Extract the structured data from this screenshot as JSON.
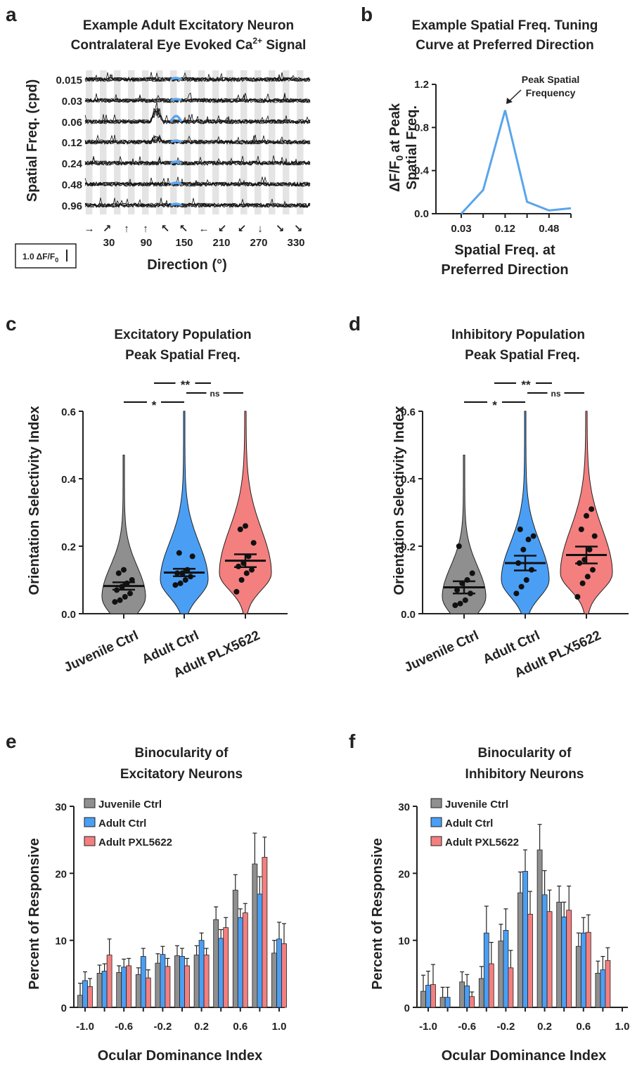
{
  "panels": {
    "a": {
      "label": "a",
      "title_lines": [
        "Example Adult Excitatory Neuron",
        "Contralateral Eye Evoked Ca"
      ],
      "title_sup": "2+",
      "title_tail": " Signal",
      "ylabel": "Spatial Freq. (cpd)",
      "xlabel": "Direction (°)",
      "scalebar": "1.0 ΔF/F",
      "scalebar_sub": "0"
    },
    "b": {
      "label": "b",
      "title_lines": [
        "Example Spatial Freq. Tuning",
        "Curve at Preferred Direction"
      ],
      "ylabel_lines": [
        "ΔF/F",
        "at Peak",
        "Spatial Freq."
      ],
      "ylabel_sub": "0",
      "xlabel_lines": [
        "Spatial Freq. at",
        "Preferred Direction"
      ],
      "annotation_lines": [
        "Peak Spatial",
        "Frequency"
      ]
    },
    "c": {
      "label": "c",
      "title_lines": [
        "Excitatory Population",
        "Peak Spatial Freq."
      ],
      "ylabel": "Orientation Selectivity Index"
    },
    "d": {
      "label": "d",
      "title_lines": [
        "Inhibitory Population",
        "Peak Spatial Freq."
      ],
      "ylabel": "Orientation Selectivity Index"
    },
    "e": {
      "label": "e",
      "title_lines": [
        "Binocularity of",
        "Excitatory Neurons"
      ],
      "ylabel": "Percent of Responsive",
      "xlabel": "Ocular Dominance Index"
    },
    "f": {
      "label": "f",
      "title_lines": [
        "Binocularity of",
        "Inhibitory Neurons"
      ],
      "ylabel": "Percent of Responsive",
      "xlabel": "Ocular Dominance Index"
    }
  },
  "colors": {
    "grey": "#8f8f8f",
    "blue": "#4a9ff5",
    "red": "#f47f7f",
    "tuning": "#5aa5ec",
    "axis": "#222222"
  },
  "chart_data": [
    {
      "id": "a",
      "type": "line",
      "row_labels": [
        "0.015",
        "0.03",
        "0.06",
        "0.12",
        "0.24",
        "0.48",
        "0.96"
      ],
      "x_tick_labels": [
        "30",
        "90",
        "150",
        "210",
        "270",
        "330"
      ],
      "direction_arrows": [
        "→",
        "↗",
        "↑",
        "↖",
        "←",
        "↙",
        "↓",
        "↘",
        "→",
        "↗",
        "↑",
        "↖",
        "←",
        "↙",
        "↓",
        "↘"
      ]
    },
    {
      "id": "b",
      "type": "line",
      "x": [
        0.03,
        0.06,
        0.12,
        0.24,
        0.48,
        0.96
      ],
      "x_tick_labels": [
        "0.03",
        "0.12",
        "0.48"
      ],
      "x_tick_values": [
        0.03,
        0.12,
        0.48
      ],
      "y": [
        0.0,
        0.22,
        0.96,
        0.11,
        0.03,
        0.05
      ],
      "ylim": [
        0,
        1.2
      ],
      "y_ticks": [
        "0.0",
        "0.4",
        "0.8",
        "1.2"
      ],
      "y_tick_values": [
        0,
        0.4,
        0.8,
        1.2
      ]
    },
    {
      "id": "c",
      "type": "violin",
      "categories": [
        "Juvenile Ctrl",
        "Adult Ctrl",
        "Adult PLX5622"
      ],
      "ylim": [
        0,
        0.6
      ],
      "y_ticks": [
        "0.0",
        "0.2",
        "0.4",
        "0.6"
      ],
      "y_tick_values": [
        0,
        0.2,
        0.4,
        0.6
      ],
      "means": [
        0.082,
        0.122,
        0.157
      ],
      "sems": [
        0.011,
        0.011,
        0.019
      ],
      "violin_max": [
        0.47,
        0.6,
        0.6
      ],
      "points": [
        [
          0.035,
          0.04,
          0.05,
          0.06,
          0.07,
          0.08,
          0.09,
          0.1,
          0.12,
          0.13
        ],
        [
          0.085,
          0.09,
          0.1,
          0.11,
          0.12,
          0.12,
          0.13,
          0.17,
          0.18
        ],
        [
          0.065,
          0.1,
          0.12,
          0.13,
          0.14,
          0.15,
          0.17,
          0.21,
          0.25,
          0.26
        ]
      ],
      "significance": [
        {
          "pair": [
            0,
            1
          ],
          "label": "*"
        },
        {
          "pair": [
            0,
            2
          ],
          "label": "**"
        },
        {
          "pair": [
            1,
            2
          ],
          "label": "ns"
        }
      ]
    },
    {
      "id": "d",
      "type": "violin",
      "categories": [
        "Juvenile Ctrl",
        "Adult Ctrl",
        "Adult PLX5622"
      ],
      "ylim": [
        0,
        0.6
      ],
      "y_ticks": [
        "0.0",
        "0.2",
        "0.4",
        "0.6"
      ],
      "y_tick_values": [
        0,
        0.2,
        0.4,
        0.6
      ],
      "means": [
        0.078,
        0.15,
        0.174
      ],
      "sems": [
        0.018,
        0.022,
        0.025
      ],
      "violin_max": [
        0.47,
        0.6,
        0.6
      ],
      "points": [
        [
          0.025,
          0.03,
          0.04,
          0.06,
          0.07,
          0.09,
          0.1,
          0.12,
          0.2
        ],
        [
          0.06,
          0.08,
          0.1,
          0.13,
          0.15,
          0.19,
          0.22,
          0.23,
          0.25
        ],
        [
          0.05,
          0.09,
          0.11,
          0.13,
          0.15,
          0.16,
          0.19,
          0.23,
          0.25,
          0.29,
          0.31
        ]
      ],
      "significance": [
        {
          "pair": [
            0,
            1
          ],
          "label": "*"
        },
        {
          "pair": [
            0,
            2
          ],
          "label": "**"
        },
        {
          "pair": [
            1,
            2
          ],
          "label": "ns"
        }
      ]
    },
    {
      "id": "e",
      "type": "bar",
      "x_tick_labels": [
        "-1.0",
        "-0.6",
        "-0.2",
        "0.2",
        "0.6",
        "1.0"
      ],
      "y_ticks": [
        "0",
        "10",
        "20",
        "30"
      ],
      "y_tick_values": [
        0,
        10,
        20,
        30
      ],
      "ylim": [
        0,
        30
      ],
      "series": [
        {
          "name": "Juvenile Ctrl",
          "values": [
            1.8,
            5.1,
            5.2,
            4.9,
            6.6,
            7.7,
            7.8,
            13.1,
            17.5,
            21.4,
            8.1
          ],
          "errors": [
            1.8,
            1.2,
            1.0,
            1.0,
            1.4,
            1.5,
            1.4,
            1.9,
            2.3,
            4.6,
            1.9
          ]
        },
        {
          "name": "Adult Ctrl",
          "values": [
            4.0,
            5.4,
            6.0,
            7.6,
            7.9,
            7.6,
            10.0,
            10.3,
            13.4,
            16.9,
            10.2
          ],
          "errors": [
            1.3,
            1.1,
            1.2,
            1.2,
            1.2,
            1.2,
            1.1,
            1.3,
            1.3,
            2.6,
            2.5
          ]
        },
        {
          "name": "Adult PXL5622",
          "values": [
            3.1,
            7.8,
            6.2,
            4.4,
            6.1,
            6.2,
            7.8,
            11.9,
            14.1,
            22.4,
            9.5
          ],
          "errors": [
            1.2,
            2.4,
            1.1,
            1.2,
            1.2,
            1.1,
            1.0,
            1.5,
            1.4,
            3.0,
            3.0
          ]
        }
      ]
    },
    {
      "id": "f",
      "type": "bar",
      "x_tick_labels": [
        "-1.0",
        "-0.6",
        "-0.2",
        "0.2",
        "0.6",
        "1.0"
      ],
      "y_ticks": [
        "0",
        "10",
        "20",
        "30"
      ],
      "y_tick_values": [
        0,
        10,
        20,
        30
      ],
      "ylim": [
        0,
        30
      ],
      "series": [
        {
          "name": "Juvenile Ctrl",
          "values": [
            2.4,
            1.5,
            3.8,
            4.3,
            9.9,
            17.1,
            23.5,
            15.7,
            9.1,
            5.1,
            0.0
          ],
          "errors": [
            2.4,
            1.5,
            1.5,
            1.8,
            2.5,
            3.1,
            3.8,
            2.4,
            2.0,
            1.8,
            0.0
          ]
        },
        {
          "name": "Adult Ctrl",
          "values": [
            3.3,
            1.5,
            3.2,
            11.1,
            11.5,
            20.3,
            16.8,
            13.5,
            11.1,
            5.6,
            0.0
          ],
          "errors": [
            2.1,
            1.5,
            1.7,
            4.0,
            3.2,
            3.2,
            3.6,
            2.2,
            2.3,
            2.0,
            0.0
          ]
        },
        {
          "name": "Adult PXL5622",
          "values": [
            3.4,
            0.0,
            1.6,
            6.5,
            5.9,
            13.9,
            14.3,
            14.5,
            11.2,
            7.0,
            0.0
          ],
          "errors": [
            3.0,
            0.0,
            0.7,
            3.2,
            2.6,
            3.4,
            3.2,
            3.6,
            2.6,
            1.9,
            0.0
          ]
        }
      ]
    }
  ]
}
